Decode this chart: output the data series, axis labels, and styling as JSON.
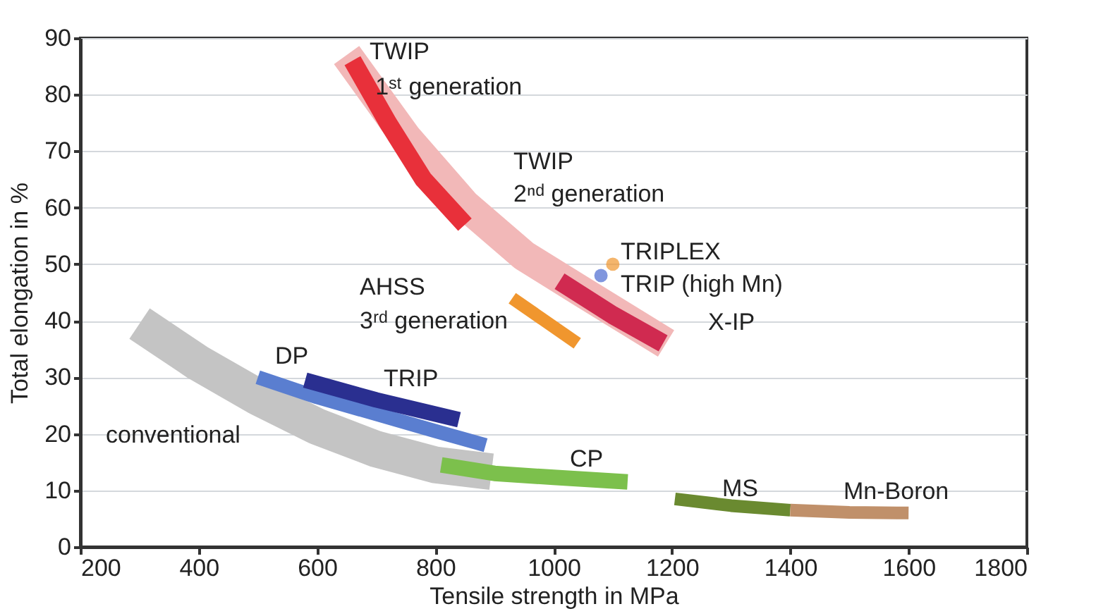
{
  "chart_data": {
    "type": "line",
    "xlabel": "Tensile strength in MPa",
    "ylabel": "Total elongation in %",
    "xlim": [
      200,
      1800
    ],
    "xticks": [
      200,
      400,
      600,
      800,
      1000,
      1200,
      1400,
      1600,
      1800
    ],
    "ylim": [
      0,
      90
    ],
    "yticks": [
      0,
      10,
      20,
      30,
      40,
      50,
      60,
      70,
      80,
      90
    ],
    "grid": "y",
    "series": [
      {
        "color": "#c4c4c4",
        "x": [
          300,
          400,
          500,
          600,
          700,
          800,
          895
        ],
        "values": [
          39.5,
          32.5,
          26.5,
          21.3,
          17.3,
          14.5,
          13.3
        ]
      },
      {
        "color": "#f2b8b8",
        "x": [
          650,
          750,
          850,
          950,
          1050,
          1190
        ],
        "values": [
          87,
          72.5,
          60.5,
          51.5,
          45,
          36
        ]
      },
      {
        "color": "#e8303a",
        "x": [
          660,
          720,
          780,
          850
        ],
        "values": [
          86,
          75,
          65,
          57
        ]
      },
      {
        "color": "#d02a50",
        "x": [
          1010,
          1100,
          1185
        ],
        "values": [
          47,
          41,
          36
        ]
      },
      {
        "color": "#f0962e",
        "x": [
          930,
          1040
        ],
        "values": [
          44,
          36
        ]
      },
      {
        "color": "#5a7ed0",
        "x": [
          500,
          600,
          700,
          800,
          885
        ],
        "values": [
          30,
          26.5,
          23.5,
          20.5,
          18
        ]
      },
      {
        "color": "#2a2f90",
        "x": [
          580,
          700,
          840
        ],
        "values": [
          29.5,
          26,
          22.5
        ]
      },
      {
        "color": "#7cc04c",
        "x": [
          810,
          900,
          1000,
          1125
        ],
        "values": [
          14.5,
          13,
          12.3,
          11.5
        ]
      },
      {
        "color": "#6a8a30",
        "x": [
          1205,
          1300,
          1400
        ],
        "values": [
          8.5,
          7.3,
          6.5
        ]
      },
      {
        "color": "#c0906a",
        "x": [
          1400,
          1500,
          1600
        ],
        "values": [
          6.5,
          6.1,
          6
        ]
      },
      {
        "type": "scatter",
        "marker": "circle",
        "color": "#f0962e",
        "x": [
          1100
        ],
        "values": [
          50
        ]
      },
      {
        "type": "scatter",
        "marker": "circle",
        "color": "#4a6ad0",
        "x": [
          1080
        ],
        "values": [
          48
        ]
      }
    ],
    "annotations": [
      "TWIP",
      {
        "text": "1ˢᵗ generation",
        "x": 689,
        "y": 81.3
      },
      "TWIP",
      "2ⁿᵈ generation",
      "AHSS",
      "3ʳᵈ generation",
      "TRIPLEX",
      "TRIP (high Mn)",
      "X-IP",
      "DP",
      "TRIP",
      "conventional",
      "CP",
      "MS",
      "Mn-Boron"
    ]
  }
}
